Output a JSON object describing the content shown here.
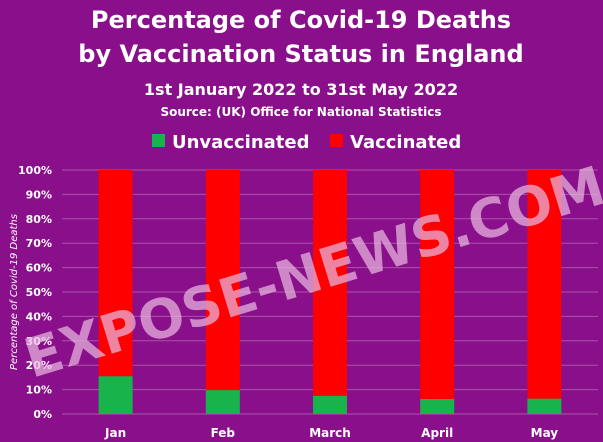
{
  "colors": {
    "background": "#8A0F8A",
    "text": "#FFFFFF",
    "grid": "#A855A8",
    "unvaccinated": "#19B34C",
    "vaccinated": "#FF0000",
    "watermark": "#E9B7E0"
  },
  "watermark": "EXPOSE-NEWS.COM",
  "chart_data": {
    "type": "bar",
    "stacked": true,
    "title": "Percentage of Covid-19 Deaths by Vaccination Status in England",
    "title_lines": [
      "Percentage of Covid-19 Deaths",
      "by Vaccination Status in England"
    ],
    "subtitle": "1st January 2022 to 31st May 2022",
    "source": "Source:  (UK) Office for National Statistics",
    "xlabel": "",
    "ylabel": "Percentage of Covid-19 Deaths",
    "ylim": [
      0,
      100
    ],
    "yticks": [
      "0%",
      "10%",
      "20%",
      "30%",
      "40%",
      "50%",
      "60%",
      "70%",
      "80%",
      "90%",
      "100%"
    ],
    "grid": true,
    "legend_position": "top",
    "categories": [
      "Jan",
      "Feb",
      "March",
      "April",
      "May"
    ],
    "series": [
      {
        "name": "Unvaccinated",
        "color": "#19B34C",
        "values": [
          15.5,
          9.8,
          7.5,
          6.2,
          6.3
        ]
      },
      {
        "name": "Vaccinated",
        "color": "#FF0000",
        "values": [
          84.5,
          90.2,
          92.5,
          93.8,
          93.7
        ]
      }
    ]
  }
}
